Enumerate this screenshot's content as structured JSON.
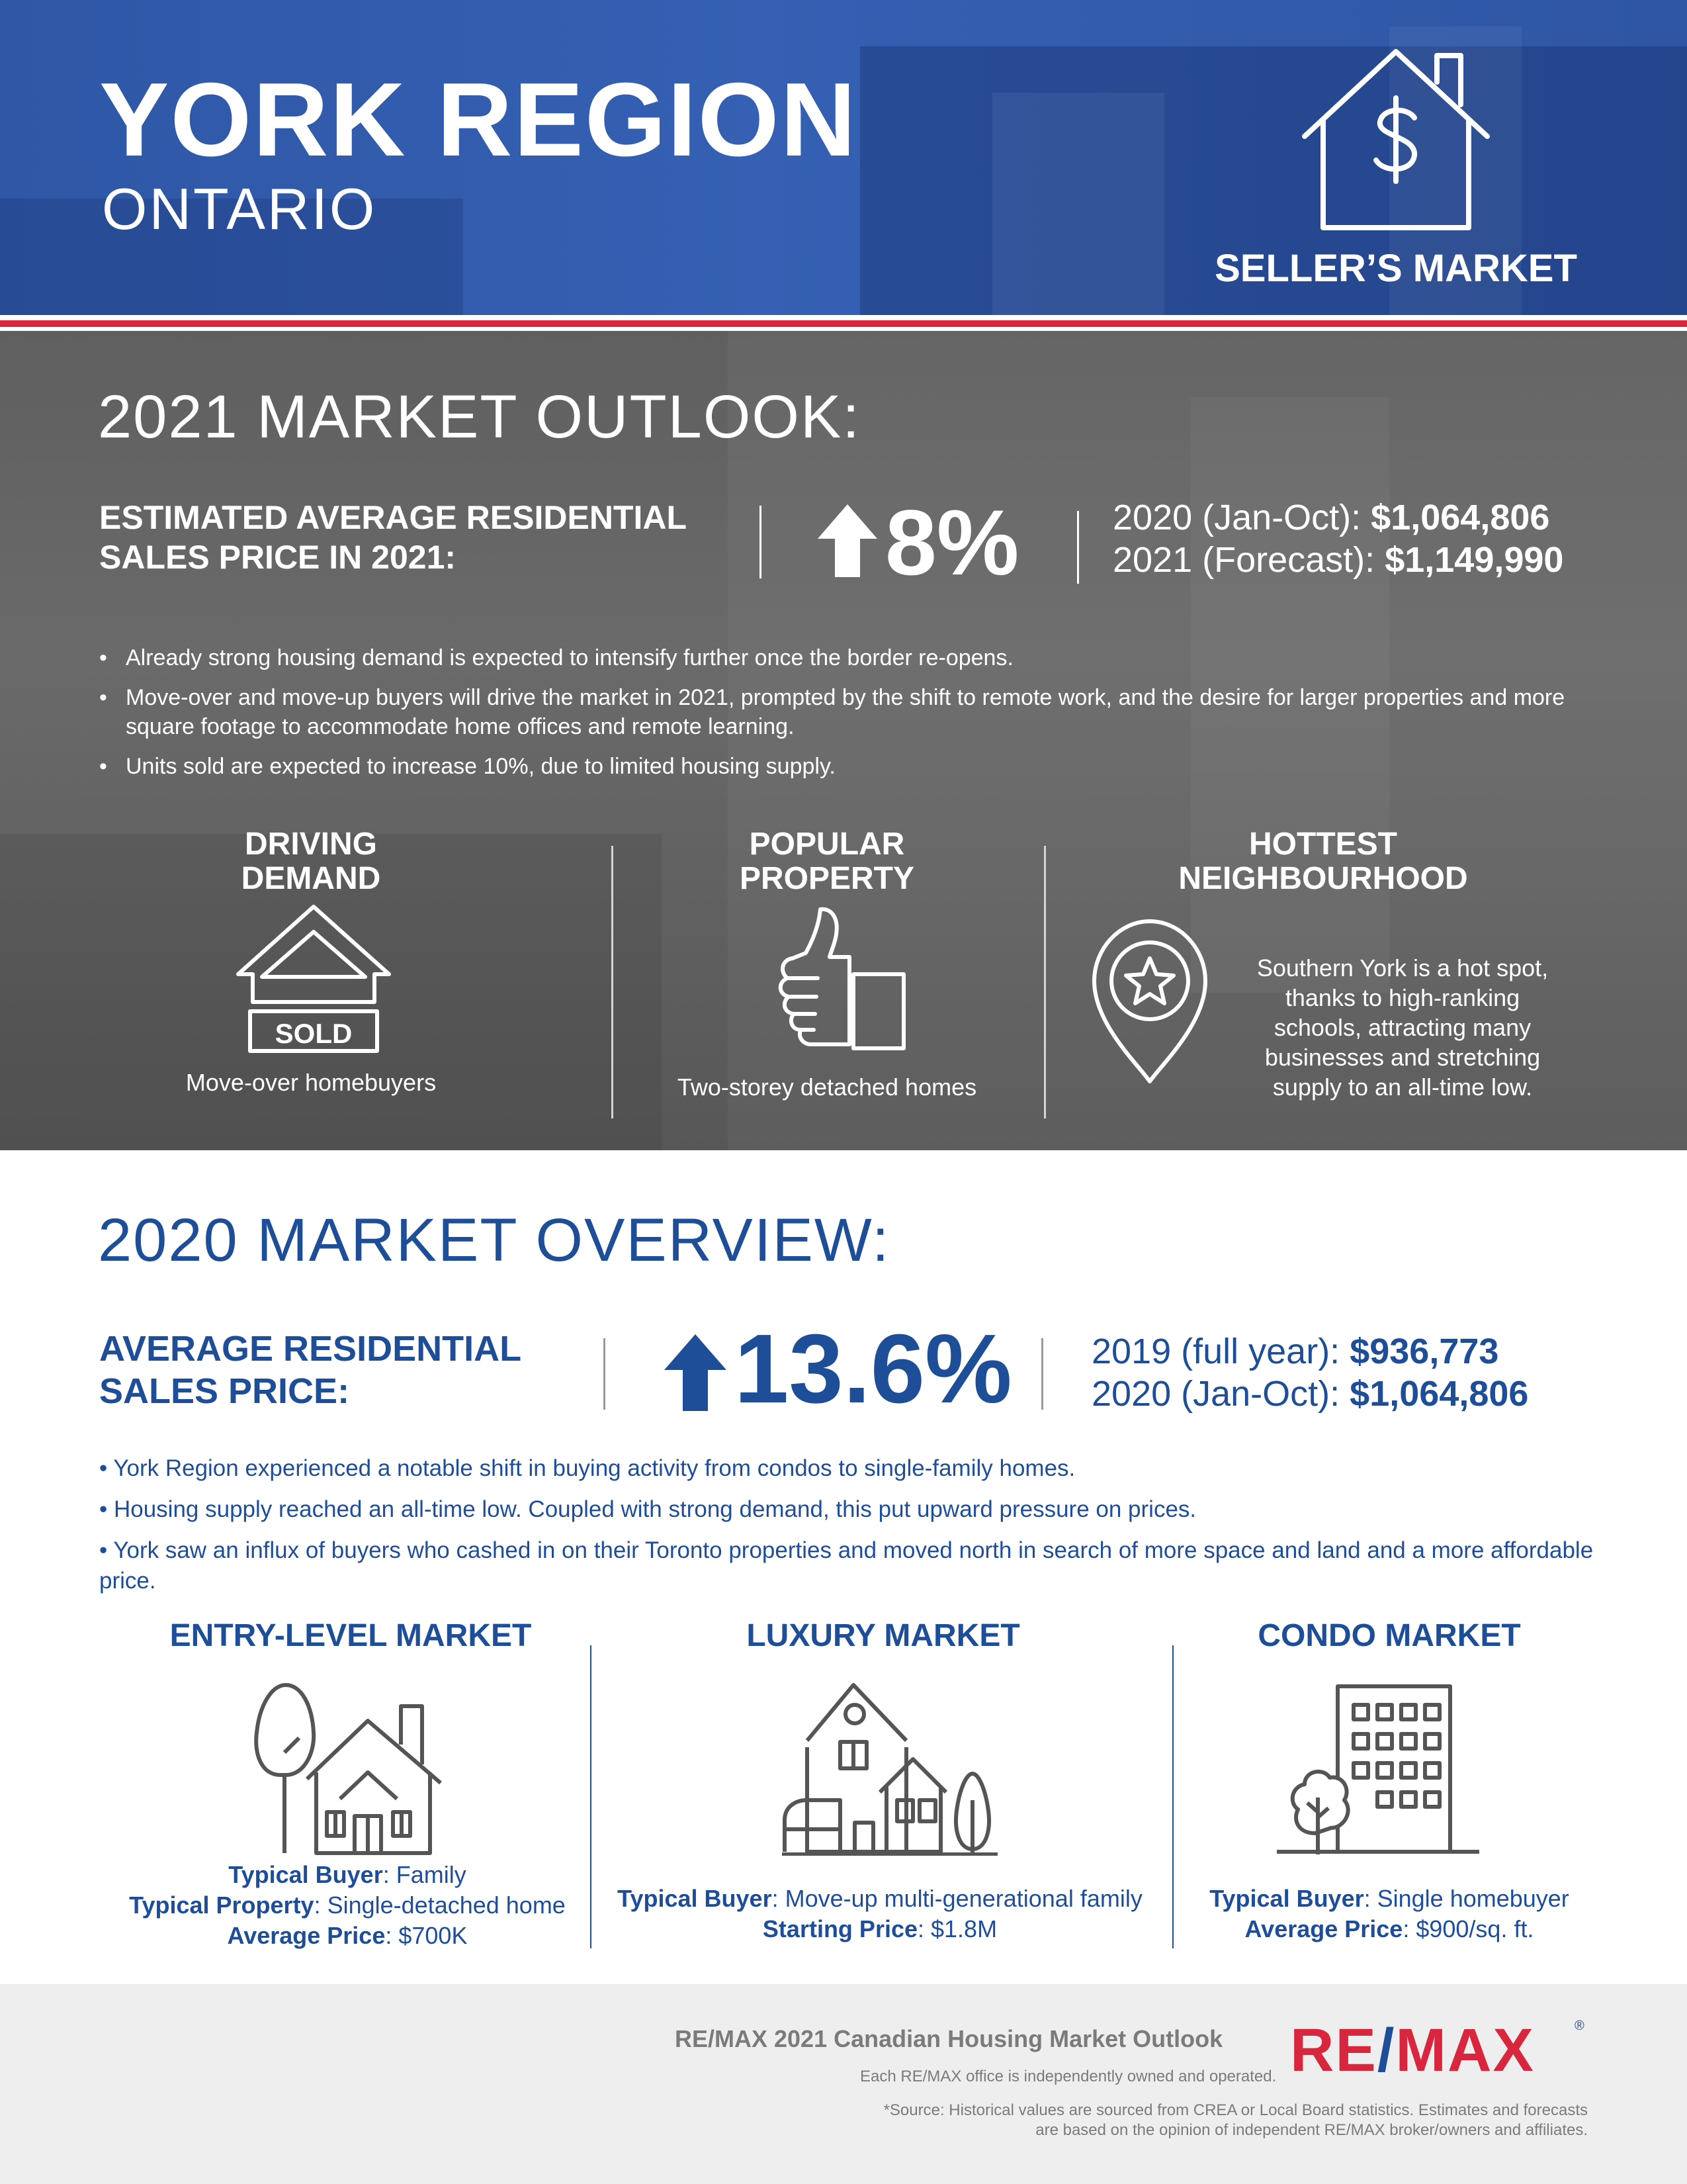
{
  "header": {
    "title": "YORK REGION",
    "subtitle": "ONTARIO",
    "badge_label": "SELLER’S MARKET",
    "badge_icon": "house-dollar-icon"
  },
  "outlook": {
    "heading": "2021 MARKET OUTLOOK:",
    "label_line1": "ESTIMATED AVERAGE RESIDENTIAL",
    "label_line2": "SALES PRICE IN 2021:",
    "change": "8%",
    "change_icon": "arrow-up-icon",
    "prev_label": "2020 (Jan-Oct):",
    "prev_value": "$1,064,806",
    "forecast_label": "2021 (Forecast):",
    "forecast_value": "$1,149,990",
    "bullets": [
      "Already strong housing demand is expected to intensify further once the border re-opens.",
      "Move-over and move-up buyers will drive the market in 2021, prompted by the shift to remote work, and the desire for larger properties and more square footage to accommodate home offices and remote learning.",
      "Units sold are expected to increase 10%, due to limited housing supply."
    ],
    "columns": [
      {
        "heading_line1": "DRIVING",
        "heading_line2": "DEMAND",
        "icon": "sold-house-icon",
        "icon_text": "SOLD",
        "caption": "Move-over homebuyers"
      },
      {
        "heading_line1": "POPULAR",
        "heading_line2": "PROPERTY",
        "icon": "thumbs-up-icon",
        "caption": "Two-storey detached homes"
      },
      {
        "heading_line1": "HOTTEST",
        "heading_line2": "NEIGHBOURHOOD",
        "icon": "star-pin-icon",
        "caption_lines": [
          "Southern York is a hot spot,",
          "thanks to high-ranking",
          "schools, attracting many",
          "businesses and stretching",
          "supply to an all-time low."
        ]
      }
    ]
  },
  "overview": {
    "heading": "2020 MARKET OVERVIEW:",
    "label_line1": "AVERAGE RESIDENTIAL",
    "label_line2": "SALES PRICE:",
    "change": "13.6%",
    "change_icon": "arrow-up-icon",
    "prev_label": "2019 (full year):",
    "prev_value": "$936,773",
    "curr_label": "2020 (Jan-Oct):",
    "curr_value": "$1,064,806",
    "bullets": [
      "• York Region experienced a notable shift in buying activity from condos to single-family homes.",
      "• Housing supply reached an all-time low. Coupled with strong demand, this put upward pressure on prices.",
      "• York saw an influx of buyers who cashed in on their Toronto properties and moved north in search of more space and land and a more affordable price."
    ],
    "markets": [
      {
        "heading": "ENTRY-LEVEL MARKET",
        "icon": "family-house-icon",
        "rows": [
          {
            "label": "Typical Buyer",
            "value": ": Family"
          },
          {
            "label": "Typical Property",
            "value": ": Single-detached home"
          },
          {
            "label": "Average Price",
            "value": ": $700K"
          }
        ]
      },
      {
        "heading": "LUXURY MARKET",
        "icon": "luxury-house-icon",
        "rows": [
          {
            "label": "Typical Buyer",
            "value": ": Move-up multi-generational family"
          },
          {
            "label": "Starting Price",
            "value": ": $1.8M"
          }
        ]
      },
      {
        "heading": "CONDO MARKET",
        "icon": "condo-building-icon",
        "rows": [
          {
            "label": "Typical Buyer",
            "value": ": Single homebuyer"
          },
          {
            "label": "Average Price",
            "value": ": $900/sq. ft."
          }
        ]
      }
    ]
  },
  "footer": {
    "title": "RE/MAX 2021 Canadian Housing Market Outlook",
    "owned": "Each RE/MAX office is independently owned and operated.",
    "source_line1": "*Source: Historical values are sourced from CREA or Local Board statistics. Estimates and forecasts",
    "source_line2": "are based on the opinion of independent RE/MAX broker/owners and affiliates.",
    "brand_re": "RE",
    "brand_slash": "/",
    "brand_max": "MAX",
    "brand_reg": "®"
  },
  "colors": {
    "brand_blue": "#1f4e99",
    "header_blue": "#3560b3",
    "brand_red": "#d7263d",
    "outlook_gray": "#636363",
    "footer_gray": "#eeeeee"
  }
}
